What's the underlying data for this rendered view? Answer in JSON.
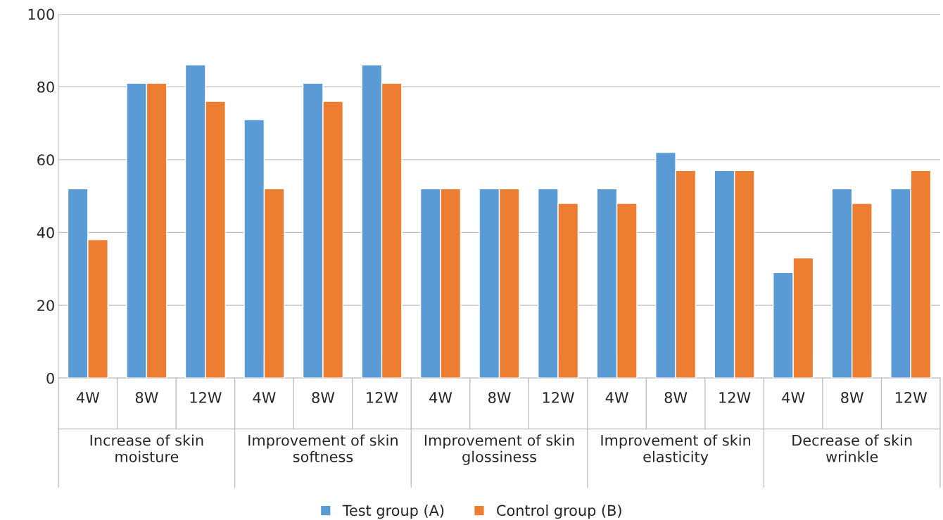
{
  "chart_data": {
    "type": "bar",
    "categories": [
      "4W",
      "8W",
      "12W",
      "4W",
      "8W",
      "12W",
      "4W",
      "8W",
      "12W",
      "4W",
      "8W",
      "12W",
      "4W",
      "8W",
      "12W"
    ],
    "series": [
      {
        "name": "Test group (A)",
        "color": "#5b9bd5",
        "values": [
          52,
          81,
          86,
          71,
          81,
          86,
          52,
          52,
          52,
          52,
          62,
          57,
          29,
          52,
          52
        ]
      },
      {
        "name": "Control group (B)",
        "color": "#ed7d31",
        "values": [
          38,
          81,
          76,
          52,
          76,
          81,
          52,
          52,
          48,
          48,
          57,
          57,
          33,
          48,
          57
        ]
      }
    ],
    "annotations": [
      "Increase of skin\nmoisture",
      "Improvement of skin\nsoftness",
      "Improvement of skin\nglossiness",
      "Improvement of skin\nelasticity",
      "Decrease of skin\nwrinkle"
    ],
    "ylim": [
      0,
      100
    ],
    "yticks": [
      0,
      20,
      40,
      60,
      80,
      100
    ],
    "grid": "y",
    "legend": "bottom"
  }
}
